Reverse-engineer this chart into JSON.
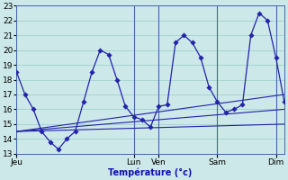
{
  "xlabel": "Température (°c)",
  "background_color": "#cce8e8",
  "grid_color": "#99cccc",
  "line_color": "#2222aa",
  "ylim": [
    13,
    23
  ],
  "day_labels": [
    "Jeu",
    "Lun",
    "Ven",
    "Sam",
    "Dim"
  ],
  "main_line_x": [
    0,
    1,
    2,
    3,
    4,
    5,
    6,
    7,
    8,
    9,
    10,
    11,
    12,
    13,
    14,
    15,
    16,
    17,
    18,
    19,
    20,
    21,
    22,
    23,
    24,
    25,
    26,
    27,
    28,
    29,
    30,
    31,
    32
  ],
  "main_line_y": [
    18.5,
    17.0,
    16.0,
    14.5,
    13.8,
    13.3,
    14.0,
    14.5,
    16.5,
    18.5,
    20.0,
    19.7,
    18.0,
    16.2,
    15.5,
    15.3,
    14.8,
    16.2,
    16.3,
    20.5,
    21.0,
    20.5,
    19.5,
    17.5,
    16.5,
    15.8,
    16.0,
    16.3,
    21.0,
    22.5,
    22.0,
    19.5,
    16.5
  ],
  "line_a": [
    [
      0,
      32
    ],
    [
      14.5,
      15.0
    ]
  ],
  "line_b": [
    [
      0,
      32
    ],
    [
      14.5,
      16.0
    ]
  ],
  "line_c": [
    [
      0,
      32
    ],
    [
      14.5,
      17.0
    ]
  ],
  "day_x_positions": [
    0,
    14,
    17,
    24,
    31
  ],
  "ylabel_fontsize": 7,
  "tick_fontsize": 6.5
}
